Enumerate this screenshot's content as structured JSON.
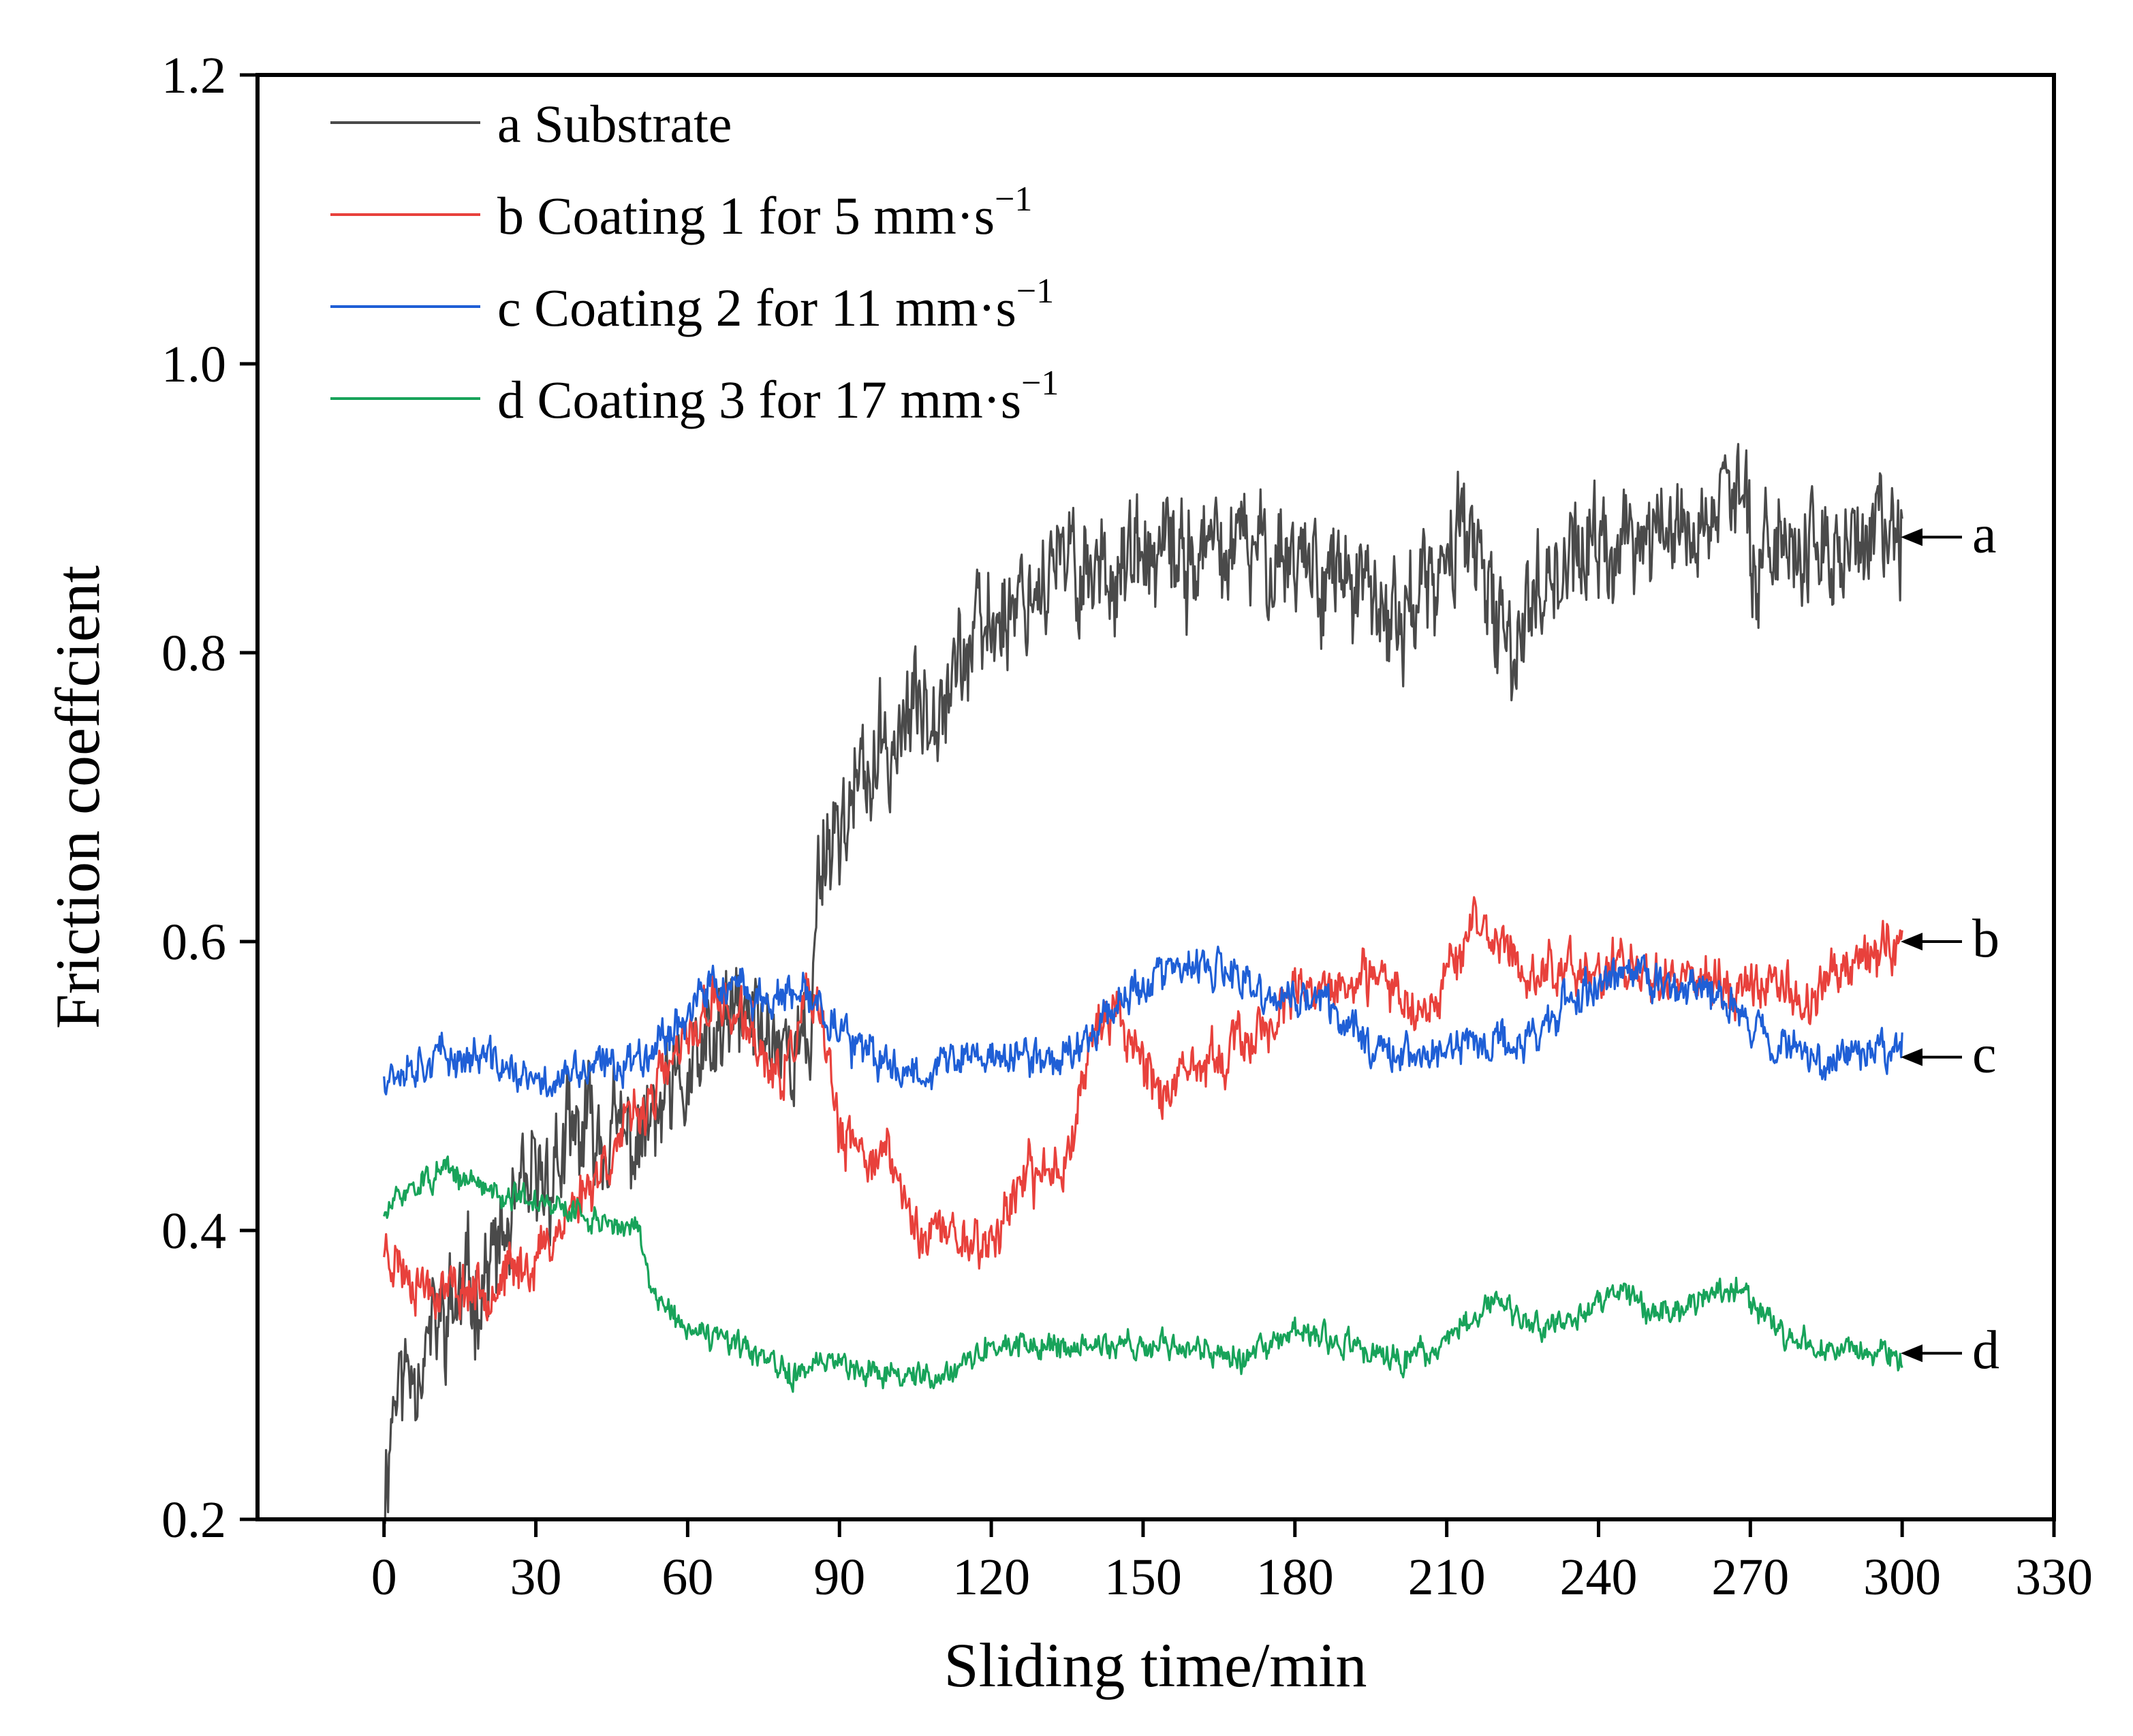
{
  "chart_data": {
    "type": "line",
    "title": "",
    "xlabel": "Sliding time/min",
    "ylabel": "Friction coeffcient",
    "xlim": [
      -25,
      330
    ],
    "ylim": [
      0.2,
      1.2
    ],
    "xticks": [
      "0",
      "30",
      "60",
      "90",
      "120",
      "150",
      "180",
      "210",
      "240",
      "270",
      "300",
      "330"
    ],
    "yticks": [
      "0.2",
      "0.4",
      "0.6",
      "0.8",
      "1.0",
      "1.2"
    ],
    "legend_position": "top-left",
    "series": [
      {
        "name": "a Substrate",
        "legend_prefix": "a Substrate",
        "legend_unit": "",
        "legend_exp": "",
        "tag": "a",
        "color": "#4a4a4a",
        "noise": 0.035,
        "seed": 11,
        "points": [
          [
            0,
            0.22
          ],
          [
            2,
            0.29
          ],
          [
            6,
            0.31
          ],
          [
            12,
            0.34
          ],
          [
            20,
            0.37
          ],
          [
            30,
            0.43
          ],
          [
            40,
            0.47
          ],
          [
            50,
            0.46
          ],
          [
            60,
            0.5
          ],
          [
            70,
            0.55
          ],
          [
            80,
            0.53
          ],
          [
            84,
            0.52
          ],
          [
            86,
            0.66
          ],
          [
            95,
            0.71
          ],
          [
            105,
            0.76
          ],
          [
            115,
            0.8
          ],
          [
            125,
            0.84
          ],
          [
            135,
            0.86
          ],
          [
            150,
            0.86
          ],
          [
            165,
            0.87
          ],
          [
            180,
            0.87
          ],
          [
            190,
            0.85
          ],
          [
            198,
            0.82
          ],
          [
            205,
            0.84
          ],
          [
            210,
            0.85
          ],
          [
            213,
            0.91
          ],
          [
            217,
            0.84
          ],
          [
            222,
            0.8
          ],
          [
            230,
            0.86
          ],
          [
            240,
            0.87
          ],
          [
            250,
            0.88
          ],
          [
            262,
            0.89
          ],
          [
            265,
            0.92
          ],
          [
            270,
            0.88
          ],
          [
            285,
            0.87
          ],
          [
            300,
            0.88
          ]
        ]
      },
      {
        "name": "b Coating 1 for 5 mm·s⁻¹",
        "legend_prefix": "b Coating 1 for 5 ",
        "legend_unit": "mm·s",
        "legend_exp": "−1",
        "tag": "b",
        "color": "#e8413c",
        "noise": 0.016,
        "seed": 23,
        "points": [
          [
            0,
            0.39
          ],
          [
            5,
            0.37
          ],
          [
            10,
            0.36
          ],
          [
            20,
            0.36
          ],
          [
            30,
            0.38
          ],
          [
            40,
            0.43
          ],
          [
            50,
            0.48
          ],
          [
            60,
            0.53
          ],
          [
            65,
            0.56
          ],
          [
            72,
            0.54
          ],
          [
            78,
            0.5
          ],
          [
            84,
            0.56
          ],
          [
            88,
            0.52
          ],
          [
            90,
            0.46
          ],
          [
            100,
            0.45
          ],
          [
            105,
            0.4
          ],
          [
            110,
            0.4
          ],
          [
            120,
            0.39
          ],
          [
            125,
            0.43
          ],
          [
            135,
            0.45
          ],
          [
            140,
            0.54
          ],
          [
            145,
            0.55
          ],
          [
            150,
            0.52
          ],
          [
            155,
            0.49
          ],
          [
            160,
            0.51
          ],
          [
            170,
            0.53
          ],
          [
            180,
            0.56
          ],
          [
            190,
            0.57
          ],
          [
            200,
            0.57
          ],
          [
            205,
            0.55
          ],
          [
            210,
            0.58
          ],
          [
            215,
            0.61
          ],
          [
            220,
            0.6
          ],
          [
            225,
            0.58
          ],
          [
            235,
            0.58
          ],
          [
            245,
            0.58
          ],
          [
            255,
            0.58
          ],
          [
            265,
            0.57
          ],
          [
            275,
            0.57
          ],
          [
            282,
            0.56
          ],
          [
            290,
            0.59
          ],
          [
            300,
            0.6
          ]
        ]
      },
      {
        "name": "c Coating 2 for 11 mm·s⁻¹",
        "legend_prefix": "c Coating 2 for 11 ",
        "legend_unit": "mm·s",
        "legend_exp": "−1",
        "tag": "c",
        "color": "#1f5fd6",
        "noise": 0.012,
        "seed": 37,
        "points": [
          [
            0,
            0.51
          ],
          [
            10,
            0.52
          ],
          [
            20,
            0.52
          ],
          [
            30,
            0.5
          ],
          [
            40,
            0.51
          ],
          [
            50,
            0.52
          ],
          [
            60,
            0.55
          ],
          [
            65,
            0.57
          ],
          [
            75,
            0.56
          ],
          [
            85,
            0.56
          ],
          [
            95,
            0.52
          ],
          [
            105,
            0.51
          ],
          [
            115,
            0.52
          ],
          [
            125,
            0.52
          ],
          [
            135,
            0.52
          ],
          [
            145,
            0.56
          ],
          [
            155,
            0.58
          ],
          [
            165,
            0.58
          ],
          [
            175,
            0.56
          ],
          [
            185,
            0.56
          ],
          [
            195,
            0.53
          ],
          [
            205,
            0.52
          ],
          [
            215,
            0.53
          ],
          [
            225,
            0.53
          ],
          [
            235,
            0.56
          ],
          [
            245,
            0.58
          ],
          [
            255,
            0.57
          ],
          [
            265,
            0.56
          ],
          [
            275,
            0.53
          ],
          [
            285,
            0.52
          ],
          [
            300,
            0.53
          ]
        ]
      },
      {
        "name": "d Coating 3 for 17 mm·s⁻¹",
        "legend_prefix": "d Coating 3 for 17 ",
        "legend_unit": "mm·s",
        "legend_exp": "−1",
        "tag": "d",
        "color": "#18a35a",
        "noise": 0.008,
        "seed": 51,
        "points": [
          [
            0,
            0.41
          ],
          [
            5,
            0.43
          ],
          [
            12,
            0.44
          ],
          [
            20,
            0.43
          ],
          [
            30,
            0.42
          ],
          [
            40,
            0.41
          ],
          [
            50,
            0.4
          ],
          [
            53,
            0.36
          ],
          [
            60,
            0.33
          ],
          [
            70,
            0.32
          ],
          [
            80,
            0.3
          ],
          [
            90,
            0.31
          ],
          [
            100,
            0.3
          ],
          [
            110,
            0.3
          ],
          [
            120,
            0.32
          ],
          [
            130,
            0.32
          ],
          [
            140,
            0.32
          ],
          [
            150,
            0.32
          ],
          [
            160,
            0.32
          ],
          [
            170,
            0.31
          ],
          [
            180,
            0.33
          ],
          [
            190,
            0.32
          ],
          [
            200,
            0.31
          ],
          [
            210,
            0.32
          ],
          [
            215,
            0.34
          ],
          [
            220,
            0.35
          ],
          [
            230,
            0.33
          ],
          [
            240,
            0.35
          ],
          [
            245,
            0.36
          ],
          [
            250,
            0.34
          ],
          [
            260,
            0.35
          ],
          [
            268,
            0.36
          ],
          [
            275,
            0.33
          ],
          [
            285,
            0.32
          ],
          [
            300,
            0.31
          ]
        ]
      }
    ]
  }
}
